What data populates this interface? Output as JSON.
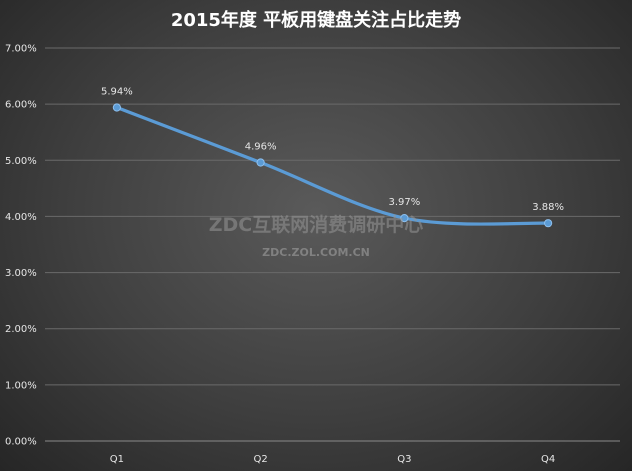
{
  "chart_data": {
    "type": "line",
    "title": "2015年度 平板用键盘关注占比走势",
    "categories": [
      "Q1",
      "Q2",
      "Q3",
      "Q4"
    ],
    "series": [
      {
        "values": [
          5.94,
          4.96,
          3.97,
          3.88
        ]
      }
    ],
    "data_labels": [
      "5.94%",
      "4.96%",
      "3.97%",
      "3.88%"
    ],
    "y_ticks": [
      "0.00%",
      "1.00%",
      "2.00%",
      "3.00%",
      "4.00%",
      "5.00%",
      "6.00%",
      "7.00%"
    ],
    "ylim": [
      0,
      7
    ],
    "grid": true,
    "legend": "none",
    "line_color": "#5b9bd5"
  },
  "watermark": {
    "main": "ZDC互联网消费调研中心",
    "sub": "ZDC.ZOL.COM.CN"
  }
}
